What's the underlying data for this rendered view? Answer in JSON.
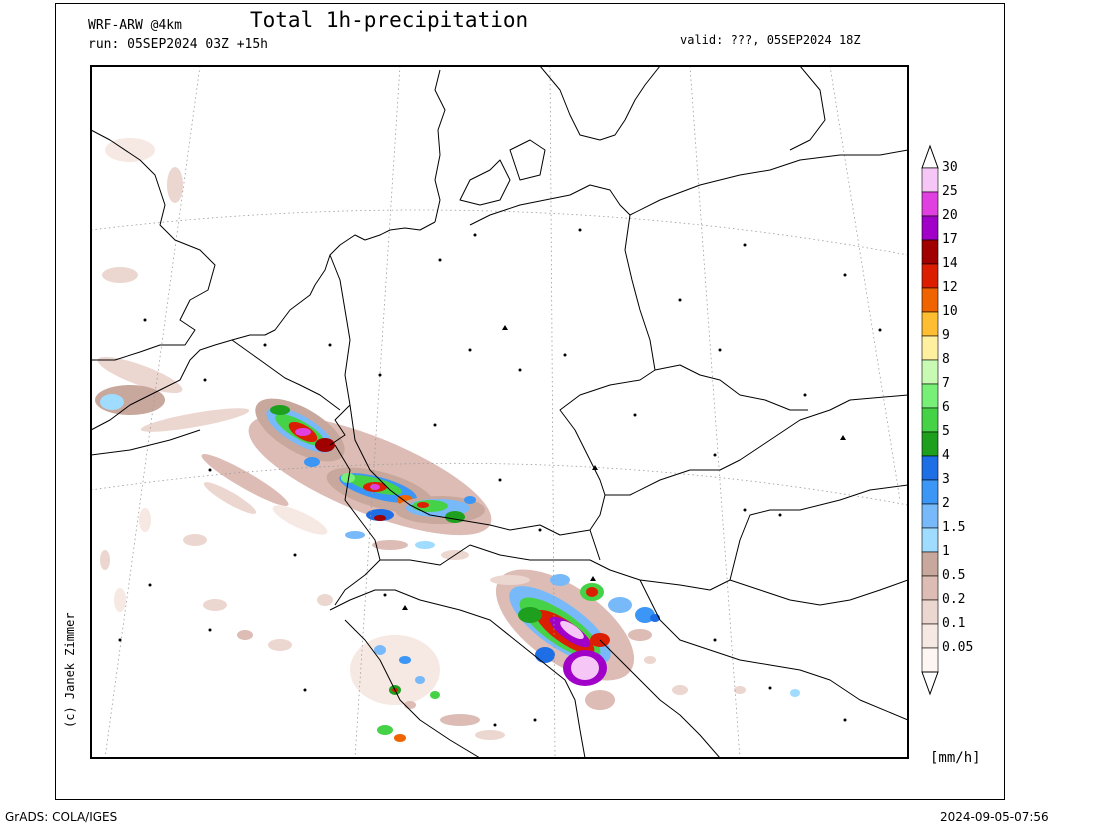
{
  "header": {
    "title": "Total 1h-precipitation",
    "model": "WRF-ARW @4km",
    "run": "run: 05SEP2024 03Z +15h",
    "valid": "valid: ???, 05SEP2024 18Z"
  },
  "credit": "(c) Janek Zimmer",
  "units": "[mm/h]",
  "footer": {
    "left": "GrADS: COLA/IGES",
    "right": "2024-09-05-07:56"
  },
  "legend": {
    "items": [
      {
        "label": "30",
        "color": "#f6c6f6"
      },
      {
        "label": "25",
        "color": "#e040e0"
      },
      {
        "label": "20",
        "color": "#a000c8"
      },
      {
        "label": "17",
        "color": "#a00000"
      },
      {
        "label": "14",
        "color": "#dc1e00"
      },
      {
        "label": "12",
        "color": "#f06400"
      },
      {
        "label": "10",
        "color": "#ffbe32"
      },
      {
        "label": "9",
        "color": "#fff0a0"
      },
      {
        "label": "8",
        "color": "#c8fab4"
      },
      {
        "label": "7",
        "color": "#78f078"
      },
      {
        "label": "6",
        "color": "#46d246"
      },
      {
        "label": "5",
        "color": "#1ea01e"
      },
      {
        "label": "4",
        "color": "#1e6ee6"
      },
      {
        "label": "3",
        "color": "#3c96f5"
      },
      {
        "label": "2",
        "color": "#78b9fa"
      },
      {
        "label": "1.5",
        "color": "#a0dcff"
      },
      {
        "label": "1",
        "color": "#c8a89c"
      },
      {
        "label": "0.5",
        "color": "#dcbcb4"
      },
      {
        "label": "0.2",
        "color": "#ecd6d0"
      },
      {
        "label": "0.1",
        "color": "#f6e8e2"
      },
      {
        "label": "0.05",
        "color": "#fdf6f2"
      }
    ]
  }
}
